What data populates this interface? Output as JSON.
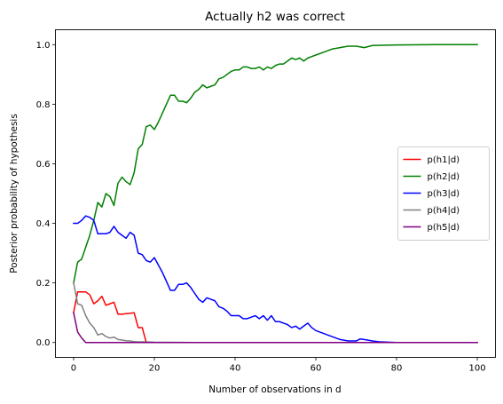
{
  "chart_data": {
    "type": "line",
    "title": "Actually h2 was correct",
    "xlabel": "Number of observations in d",
    "ylabel": "Posterior probability of hypothesis",
    "xlim": [
      -4.5,
      104.5
    ],
    "ylim": [
      -0.05,
      1.05
    ],
    "xticks": [
      0,
      20,
      40,
      60,
      80,
      100
    ],
    "yticks": [
      0.0,
      0.2,
      0.4,
      0.6,
      0.8,
      1.0
    ],
    "xtick_labels": [
      "0",
      "20",
      "40",
      "60",
      "80",
      "100"
    ],
    "ytick_labels": [
      "0.0",
      "0.2",
      "0.4",
      "0.6",
      "0.8",
      "1.0"
    ],
    "grid": false,
    "legend_position": "center-right",
    "series": [
      {
        "name": "p(h1|d)",
        "color": "#ff0000",
        "points": [
          [
            0,
            0.1
          ],
          [
            1,
            0.17
          ],
          [
            2,
            0.17
          ],
          [
            3,
            0.17
          ],
          [
            4,
            0.16
          ],
          [
            5,
            0.13
          ],
          [
            6,
            0.14
          ],
          [
            7,
            0.155
          ],
          [
            8,
            0.125
          ],
          [
            9,
            0.13
          ],
          [
            10,
            0.135
          ],
          [
            11,
            0.095
          ],
          [
            12,
            0.095
          ],
          [
            13,
            0.097
          ],
          [
            14,
            0.098
          ],
          [
            15,
            0.1
          ],
          [
            16,
            0.05
          ],
          [
            17,
            0.05
          ],
          [
            18,
            0.0
          ],
          [
            20,
            0.0
          ],
          [
            30,
            0.0
          ],
          [
            40,
            0.0
          ],
          [
            50,
            0.0
          ],
          [
            60,
            0.0
          ],
          [
            70,
            0.0
          ],
          [
            80,
            0.0
          ],
          [
            90,
            0.0
          ],
          [
            100,
            0.0
          ]
        ]
      },
      {
        "name": "p(h2|d)",
        "color": "#008000",
        "points": [
          [
            0,
            0.2
          ],
          [
            1,
            0.27
          ],
          [
            2,
            0.28
          ],
          [
            3,
            0.32
          ],
          [
            4,
            0.36
          ],
          [
            5,
            0.41
          ],
          [
            6,
            0.47
          ],
          [
            7,
            0.455
          ],
          [
            8,
            0.5
          ],
          [
            9,
            0.49
          ],
          [
            10,
            0.46
          ],
          [
            11,
            0.535
          ],
          [
            12,
            0.555
          ],
          [
            13,
            0.54
          ],
          [
            14,
            0.53
          ],
          [
            15,
            0.57
          ],
          [
            16,
            0.65
          ],
          [
            17,
            0.665
          ],
          [
            18,
            0.725
          ],
          [
            19,
            0.73
          ],
          [
            20,
            0.715
          ],
          [
            21,
            0.74
          ],
          [
            22,
            0.77
          ],
          [
            23,
            0.8
          ],
          [
            24,
            0.83
          ],
          [
            25,
            0.83
          ],
          [
            26,
            0.81
          ],
          [
            27,
            0.81
          ],
          [
            28,
            0.805
          ],
          [
            29,
            0.82
          ],
          [
            30,
            0.84
          ],
          [
            31,
            0.85
          ],
          [
            32,
            0.865
          ],
          [
            33,
            0.855
          ],
          [
            34,
            0.86
          ],
          [
            35,
            0.865
          ],
          [
            36,
            0.885
          ],
          [
            37,
            0.89
          ],
          [
            38,
            0.9
          ],
          [
            39,
            0.91
          ],
          [
            40,
            0.915
          ],
          [
            41,
            0.915
          ],
          [
            42,
            0.925
          ],
          [
            43,
            0.925
          ],
          [
            44,
            0.92
          ],
          [
            45,
            0.92
          ],
          [
            46,
            0.925
          ],
          [
            47,
            0.915
          ],
          [
            48,
            0.925
          ],
          [
            49,
            0.92
          ],
          [
            50,
            0.93
          ],
          [
            51,
            0.935
          ],
          [
            52,
            0.935
          ],
          [
            53,
            0.945
          ],
          [
            54,
            0.955
          ],
          [
            55,
            0.95
          ],
          [
            56,
            0.955
          ],
          [
            57,
            0.945
          ],
          [
            58,
            0.955
          ],
          [
            59,
            0.96
          ],
          [
            60,
            0.965
          ],
          [
            62,
            0.975
          ],
          [
            64,
            0.985
          ],
          [
            66,
            0.99
          ],
          [
            68,
            0.995
          ],
          [
            70,
            0.995
          ],
          [
            72,
            0.99
          ],
          [
            74,
            0.997
          ],
          [
            76,
            0.998
          ],
          [
            80,
            0.999
          ],
          [
            90,
            1.0
          ],
          [
            100,
            1.0
          ]
        ]
      },
      {
        "name": "p(h3|d)",
        "color": "#0000ff",
        "points": [
          [
            0,
            0.4
          ],
          [
            1,
            0.4
          ],
          [
            2,
            0.41
          ],
          [
            3,
            0.425
          ],
          [
            4,
            0.42
          ],
          [
            5,
            0.41
          ],
          [
            6,
            0.365
          ],
          [
            7,
            0.365
          ],
          [
            8,
            0.365
          ],
          [
            9,
            0.37
          ],
          [
            10,
            0.39
          ],
          [
            11,
            0.37
          ],
          [
            12,
            0.36
          ],
          [
            13,
            0.35
          ],
          [
            14,
            0.37
          ],
          [
            15,
            0.36
          ],
          [
            16,
            0.3
          ],
          [
            17,
            0.295
          ],
          [
            18,
            0.275
          ],
          [
            19,
            0.27
          ],
          [
            20,
            0.285
          ],
          [
            21,
            0.26
          ],
          [
            22,
            0.235
          ],
          [
            23,
            0.205
          ],
          [
            24,
            0.175
          ],
          [
            25,
            0.175
          ],
          [
            26,
            0.195
          ],
          [
            27,
            0.195
          ],
          [
            28,
            0.2
          ],
          [
            29,
            0.185
          ],
          [
            30,
            0.165
          ],
          [
            31,
            0.145
          ],
          [
            32,
            0.135
          ],
          [
            33,
            0.15
          ],
          [
            34,
            0.145
          ],
          [
            35,
            0.14
          ],
          [
            36,
            0.12
          ],
          [
            37,
            0.115
          ],
          [
            38,
            0.105
          ],
          [
            39,
            0.09
          ],
          [
            40,
            0.09
          ],
          [
            41,
            0.09
          ],
          [
            42,
            0.08
          ],
          [
            43,
            0.08
          ],
          [
            44,
            0.085
          ],
          [
            45,
            0.09
          ],
          [
            46,
            0.08
          ],
          [
            47,
            0.09
          ],
          [
            48,
            0.075
          ],
          [
            49,
            0.09
          ],
          [
            50,
            0.07
          ],
          [
            51,
            0.07
          ],
          [
            52,
            0.065
          ],
          [
            53,
            0.06
          ],
          [
            54,
            0.05
          ],
          [
            55,
            0.055
          ],
          [
            56,
            0.045
          ],
          [
            57,
            0.055
          ],
          [
            58,
            0.065
          ],
          [
            59,
            0.05
          ],
          [
            60,
            0.04
          ],
          [
            62,
            0.03
          ],
          [
            64,
            0.02
          ],
          [
            66,
            0.01
          ],
          [
            68,
            0.005
          ],
          [
            70,
            0.005
          ],
          [
            71,
            0.012
          ],
          [
            72,
            0.01
          ],
          [
            74,
            0.005
          ],
          [
            76,
            0.002
          ],
          [
            80,
            0.0
          ],
          [
            90,
            0.0
          ],
          [
            100,
            0.0
          ]
        ]
      },
      {
        "name": "p(h4|d)",
        "color": "#808080",
        "points": [
          [
            0,
            0.2
          ],
          [
            1,
            0.13
          ],
          [
            2,
            0.125
          ],
          [
            3,
            0.09
          ],
          [
            4,
            0.065
          ],
          [
            5,
            0.05
          ],
          [
            6,
            0.025
          ],
          [
            7,
            0.03
          ],
          [
            8,
            0.02
          ],
          [
            9,
            0.015
          ],
          [
            10,
            0.018
          ],
          [
            11,
            0.01
          ],
          [
            12,
            0.008
          ],
          [
            13,
            0.006
          ],
          [
            14,
            0.005
          ],
          [
            15,
            0.003
          ],
          [
            16,
            0.002
          ],
          [
            18,
            0.002
          ],
          [
            20,
            0.001
          ],
          [
            30,
            0.0
          ],
          [
            40,
            0.0
          ],
          [
            50,
            0.0
          ],
          [
            60,
            0.0
          ],
          [
            70,
            0.0
          ],
          [
            80,
            0.0
          ],
          [
            90,
            0.0
          ],
          [
            100,
            0.0
          ]
        ]
      },
      {
        "name": "p(h5|d)",
        "color": "#800080",
        "points": [
          [
            0,
            0.1
          ],
          [
            1,
            0.035
          ],
          [
            2,
            0.015
          ],
          [
            3,
            0.0
          ],
          [
            5,
            0.0
          ],
          [
            10,
            0.0
          ],
          [
            20,
            0.0
          ],
          [
            30,
            0.0
          ],
          [
            40,
            0.0
          ],
          [
            50,
            0.0
          ],
          [
            60,
            0.0
          ],
          [
            70,
            0.0
          ],
          [
            80,
            0.0
          ],
          [
            90,
            0.0
          ],
          [
            100,
            0.0
          ]
        ]
      }
    ]
  }
}
